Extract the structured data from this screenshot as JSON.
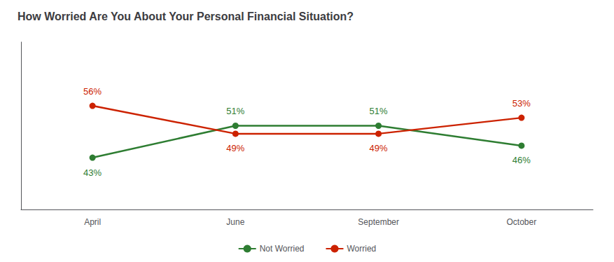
{
  "chart_data": {
    "type": "line",
    "title": "How Worried Are You About Your Personal Financial Situation?",
    "categories": [
      "April",
      "June",
      "September",
      "October"
    ],
    "series": [
      {
        "name": "Not Worried",
        "color": "#2e7d32",
        "values": [
          43,
          51,
          51,
          46
        ],
        "value_labels": [
          "43%",
          "51%",
          "51%",
          "46%"
        ]
      },
      {
        "name": "Worried",
        "color": "#cc2200",
        "values": [
          56,
          49,
          49,
          53
        ],
        "value_labels": [
          "56%",
          "49%",
          "49%",
          "53%"
        ]
      }
    ],
    "ylim": [
      30,
      72
    ],
    "grid": false,
    "legend": "bottom",
    "data_labels": true,
    "tick_labels": "x",
    "marker": "circle"
  }
}
